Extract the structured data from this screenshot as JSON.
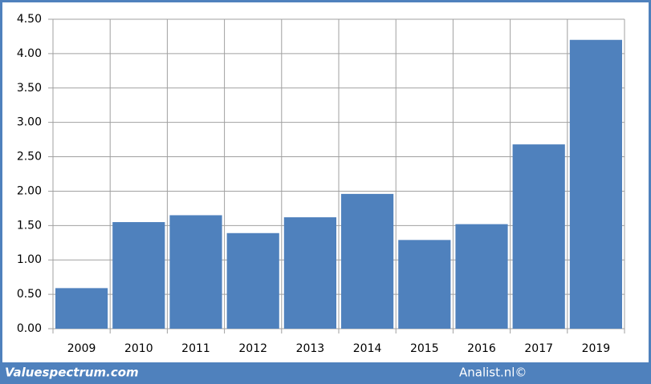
{
  "chart_data": {
    "type": "bar",
    "categories": [
      "2009",
      "2010",
      "2011",
      "2012",
      "2013",
      "2014",
      "2015",
      "2016",
      "2017",
      "2019"
    ],
    "values": [
      0.59,
      1.55,
      1.65,
      1.39,
      1.62,
      1.96,
      1.29,
      1.52,
      2.68,
      4.2
    ],
    "color": "#4f81bd",
    "ylim": [
      0,
      4.5
    ],
    "yticks": [
      {
        "value": 0,
        "label": "0.00"
      },
      {
        "value": 0.5,
        "label": "0.50"
      },
      {
        "value": 1,
        "label": "1.00"
      },
      {
        "value": 1.5,
        "label": "1.50"
      },
      {
        "value": 2,
        "label": "2.00"
      },
      {
        "value": 2.5,
        "label": "2.50"
      },
      {
        "value": 3,
        "label": "3.00"
      },
      {
        "value": 3.5,
        "label": "3.50"
      },
      {
        "value": 4,
        "label": "4.00"
      },
      {
        "value": 4.5,
        "label": "4.50"
      }
    ],
    "grid": true,
    "footer_left": "Valuespectrum.com",
    "footer_right": "Analist.nl©"
  }
}
